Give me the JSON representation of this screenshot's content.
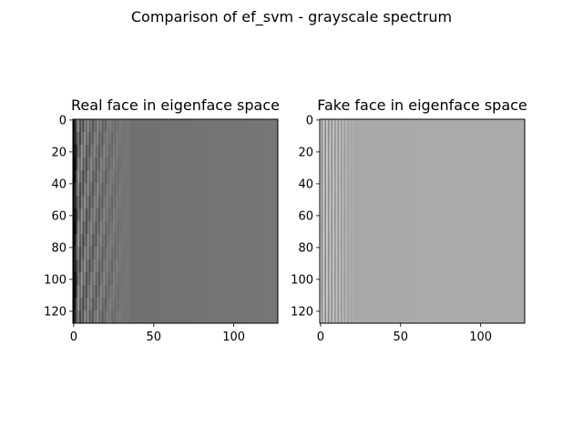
{
  "figure": {
    "suptitle": "Comparison of ef_svm - grayscale spectrum"
  },
  "chart_data": [
    {
      "type": "heatmap",
      "title": "Real face in eigenface space",
      "colormap": "grayscale",
      "grid": false,
      "xlim": [
        -0.5,
        127.5
      ],
      "ylim": [
        127.5,
        -0.5
      ],
      "y_inverted": true,
      "xticks": [
        0,
        50,
        100
      ],
      "yticks": [
        0,
        20,
        40,
        60,
        80,
        100,
        120
      ],
      "image_shape": [
        128,
        128
      ],
      "description_values": {
        "background_gray": "#767676",
        "left_columns": "dark/black vertical streaks with striped variation fading toward gray by about column 30"
      }
    },
    {
      "type": "heatmap",
      "title": "Fake face in eigenface space",
      "colormap": "grayscale",
      "grid": false,
      "xlim": [
        -0.5,
        127.5
      ],
      "ylim": [
        127.5,
        -0.5
      ],
      "y_inverted": true,
      "xticks": [
        0,
        50,
        100
      ],
      "yticks": [
        0,
        20,
        40,
        60,
        80,
        100,
        120
      ],
      "image_shape": [
        128,
        128
      ],
      "description_values": {
        "background_gray": "#aaaaaa",
        "left_columns": "faint light/dark vertical stripes near column 0 fading to uniform gray by about column 20"
      }
    }
  ]
}
